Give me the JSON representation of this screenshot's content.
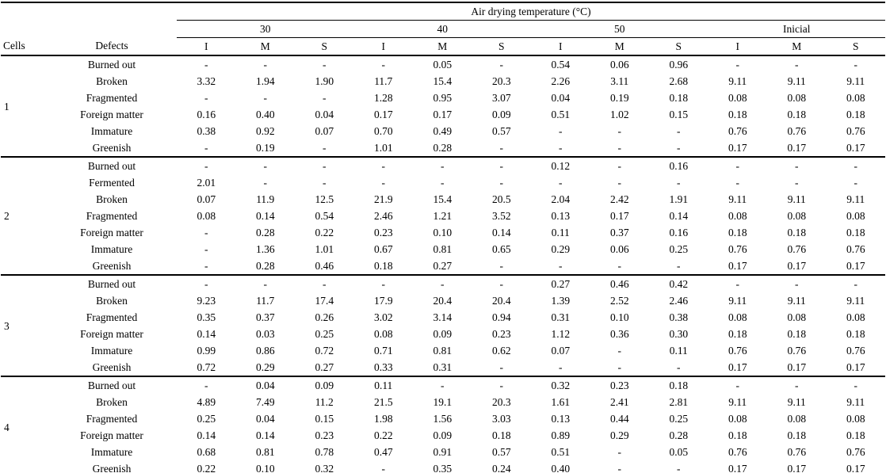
{
  "table": {
    "temp_header": "Air drying temperature (°C)",
    "cells_label": "Cells",
    "defects_label": "Defects",
    "groups": [
      "30",
      "40",
      "50",
      "Inicial"
    ],
    "subcols": [
      "I",
      "M",
      "S"
    ],
    "sections": [
      {
        "cell": "1",
        "rows": [
          {
            "defect": "Burned out",
            "values": [
              "-",
              "-",
              "-",
              "-",
              "0.05",
              "-",
              "0.54",
              "0.06",
              "0.96",
              "-",
              "-",
              "-"
            ]
          },
          {
            "defect": "Broken",
            "values": [
              "3.32",
              "1.94",
              "1.90",
              "11.7",
              "15.4",
              "20.3",
              "2.26",
              "3.11",
              "2.68",
              "9.11",
              "9.11",
              "9.11"
            ]
          },
          {
            "defect": "Fragmented",
            "values": [
              "-",
              "-",
              "-",
              "1.28",
              "0.95",
              "3.07",
              "0.04",
              "0.19",
              "0.18",
              "0.08",
              "0.08",
              "0.08"
            ]
          },
          {
            "defect": "Foreign matter",
            "values": [
              "0.16",
              "0.40",
              "0.04",
              "0.17",
              "0.17",
              "0.09",
              "0.51",
              "1.02",
              "0.15",
              "0.18",
              "0.18",
              "0.18"
            ]
          },
          {
            "defect": "Immature",
            "values": [
              "0.38",
              "0.92",
              "0.07",
              "0.70",
              "0.49",
              "0.57",
              "-",
              "-",
              "-",
              "0.76",
              "0.76",
              "0.76"
            ]
          },
          {
            "defect": "Greenish",
            "values": [
              "-",
              "0.19",
              "-",
              "1.01",
              "0.28",
              "-",
              "-",
              "-",
              "-",
              "0.17",
              "0.17",
              "0.17"
            ]
          }
        ]
      },
      {
        "cell": "2",
        "rows": [
          {
            "defect": "Burned out",
            "values": [
              "-",
              "-",
              "-",
              "-",
              "-",
              "-",
              "0.12",
              "-",
              "0.16",
              "-",
              "-",
              "-"
            ]
          },
          {
            "defect": "Fermented",
            "values": [
              "2.01",
              "-",
              "-",
              "-",
              "-",
              "-",
              "-",
              "-",
              "-",
              "-",
              "-",
              "-"
            ]
          },
          {
            "defect": "Broken",
            "values": [
              "0.07",
              "11.9",
              "12.5",
              "21.9",
              "15.4",
              "20.5",
              "2.04",
              "2.42",
              "1.91",
              "9.11",
              "9.11",
              "9.11"
            ]
          },
          {
            "defect": "Fragmented",
            "values": [
              "0.08",
              "0.14",
              "0.54",
              "2.46",
              "1.21",
              "3.52",
              "0.13",
              "0.17",
              "0.14",
              "0.08",
              "0.08",
              "0.08"
            ]
          },
          {
            "defect": "Foreign matter",
            "values": [
              "-",
              "0.28",
              "0.22",
              "0.23",
              "0.10",
              "0.14",
              "0.11",
              "0.37",
              "0.16",
              "0.18",
              "0.18",
              "0.18"
            ]
          },
          {
            "defect": "Immature",
            "values": [
              "-",
              "1.36",
              "1.01",
              "0.67",
              "0.81",
              "0.65",
              "0.29",
              "0.06",
              "0.25",
              "0.76",
              "0.76",
              "0.76"
            ]
          },
          {
            "defect": "Greenish",
            "values": [
              "-",
              "0.28",
              "0.46",
              "0.18",
              "0.27",
              "-",
              "-",
              "-",
              "-",
              "0.17",
              "0.17",
              "0.17"
            ]
          }
        ]
      },
      {
        "cell": "3",
        "rows": [
          {
            "defect": "Burned out",
            "values": [
              "-",
              "-",
              "-",
              "-",
              "-",
              "-",
              "0.27",
              "0.46",
              "0.42",
              "-",
              "-",
              "-"
            ]
          },
          {
            "defect": "Broken",
            "values": [
              "9.23",
              "11.7",
              "17.4",
              "17.9",
              "20.4",
              "20.4",
              "1.39",
              "2.52",
              "2.46",
              "9.11",
              "9.11",
              "9.11"
            ]
          },
          {
            "defect": "Fragmented",
            "values": [
              "0.35",
              "0.37",
              "0.26",
              "3.02",
              "3.14",
              "0.94",
              "0.31",
              "0.10",
              "0.38",
              "0.08",
              "0.08",
              "0.08"
            ]
          },
          {
            "defect": "Foreign matter",
            "values": [
              "0.14",
              "0.03",
              "0.25",
              "0.08",
              "0.09",
              "0.23",
              "1.12",
              "0.36",
              "0.30",
              "0.18",
              "0.18",
              "0.18"
            ]
          },
          {
            "defect": "Immature",
            "values": [
              "0.99",
              "0.86",
              "0.72",
              "0.71",
              "0.81",
              "0.62",
              "0.07",
              "-",
              "0.11",
              "0.76",
              "0.76",
              "0.76"
            ]
          },
          {
            "defect": "Greenish",
            "values": [
              "0.72",
              "0.29",
              "0.27",
              "0.33",
              "0.31",
              "-",
              "-",
              "-",
              "-",
              "0.17",
              "0.17",
              "0.17"
            ]
          }
        ]
      },
      {
        "cell": "4",
        "rows": [
          {
            "defect": "Burned out",
            "values": [
              "-",
              "0.04",
              "0.09",
              "0.11",
              "-",
              "-",
              "0.32",
              "0.23",
              "0.18",
              "-",
              "-",
              "-"
            ]
          },
          {
            "defect": "Broken",
            "values": [
              "4.89",
              "7.49",
              "11.2",
              "21.5",
              "19.1",
              "20.3",
              "1.61",
              "2.41",
              "2.81",
              "9.11",
              "9.11",
              "9.11"
            ]
          },
          {
            "defect": "Fragmented",
            "values": [
              "0.25",
              "0.04",
              "0.15",
              "1.98",
              "1.56",
              "3.03",
              "0.13",
              "0.44",
              "0.25",
              "0.08",
              "0.08",
              "0.08"
            ]
          },
          {
            "defect": "Foreign matter",
            "values": [
              "0.14",
              "0.14",
              "0.23",
              "0.22",
              "0.09",
              "0.18",
              "0.89",
              "0.29",
              "0.28",
              "0.18",
              "0.18",
              "0.18"
            ]
          },
          {
            "defect": "Immature",
            "values": [
              "0.68",
              "0.81",
              "0.78",
              "0.47",
              "0.91",
              "0.57",
              "0.51",
              "-",
              "0.05",
              "0.76",
              "0.76",
              "0.76"
            ]
          },
          {
            "defect": "Greenish",
            "values": [
              "0.22",
              "0.10",
              "0.32",
              "-",
              "0.35",
              "0.24",
              "0.40",
              "-",
              "-",
              "0.17",
              "0.17",
              "0.17"
            ]
          }
        ]
      }
    ]
  }
}
